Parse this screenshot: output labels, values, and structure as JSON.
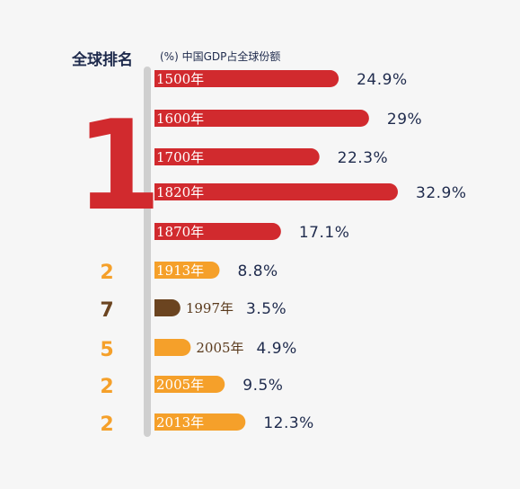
{
  "header": {
    "rank_label": "全球排名",
    "share_label": "(%) 中国GDP占全球份额"
  },
  "colors": {
    "red": "#d12a2e",
    "orange": "#f5a02a",
    "brown": "#6b4420",
    "axis": "#cfcfcf",
    "text_dark": "#1f2b4d"
  },
  "chart_data": {
    "type": "bar",
    "orientation": "horizontal",
    "title": "",
    "xlabel": "(%) 中国GDP占全球份额",
    "ylabel": "全球排名",
    "xlim": [
      0,
      35
    ],
    "grid": false,
    "categories": [
      "1500年",
      "1600年",
      "1700年",
      "1820年",
      "1870年",
      "1913年",
      "1997年",
      "2005年",
      "2005年",
      "2013年"
    ],
    "values": [
      24.9,
      29,
      22.3,
      32.9,
      17.1,
      8.8,
      3.5,
      4.9,
      9.5,
      12.3
    ],
    "value_labels": [
      "24.9%",
      "29%",
      "22.3%",
      "32.9%",
      "17.1%",
      "8.8%",
      "3.5%",
      "4.9%",
      "9.5%",
      "12.3%"
    ],
    "ranks": [
      "1",
      "1",
      "1",
      "1",
      "1",
      "2",
      "7",
      "5",
      "2",
      "2"
    ],
    "rank_group_label": "1",
    "bar_colors": [
      "red",
      "red",
      "red",
      "red",
      "red",
      "orange",
      "brown",
      "orange",
      "orange",
      "orange"
    ]
  }
}
